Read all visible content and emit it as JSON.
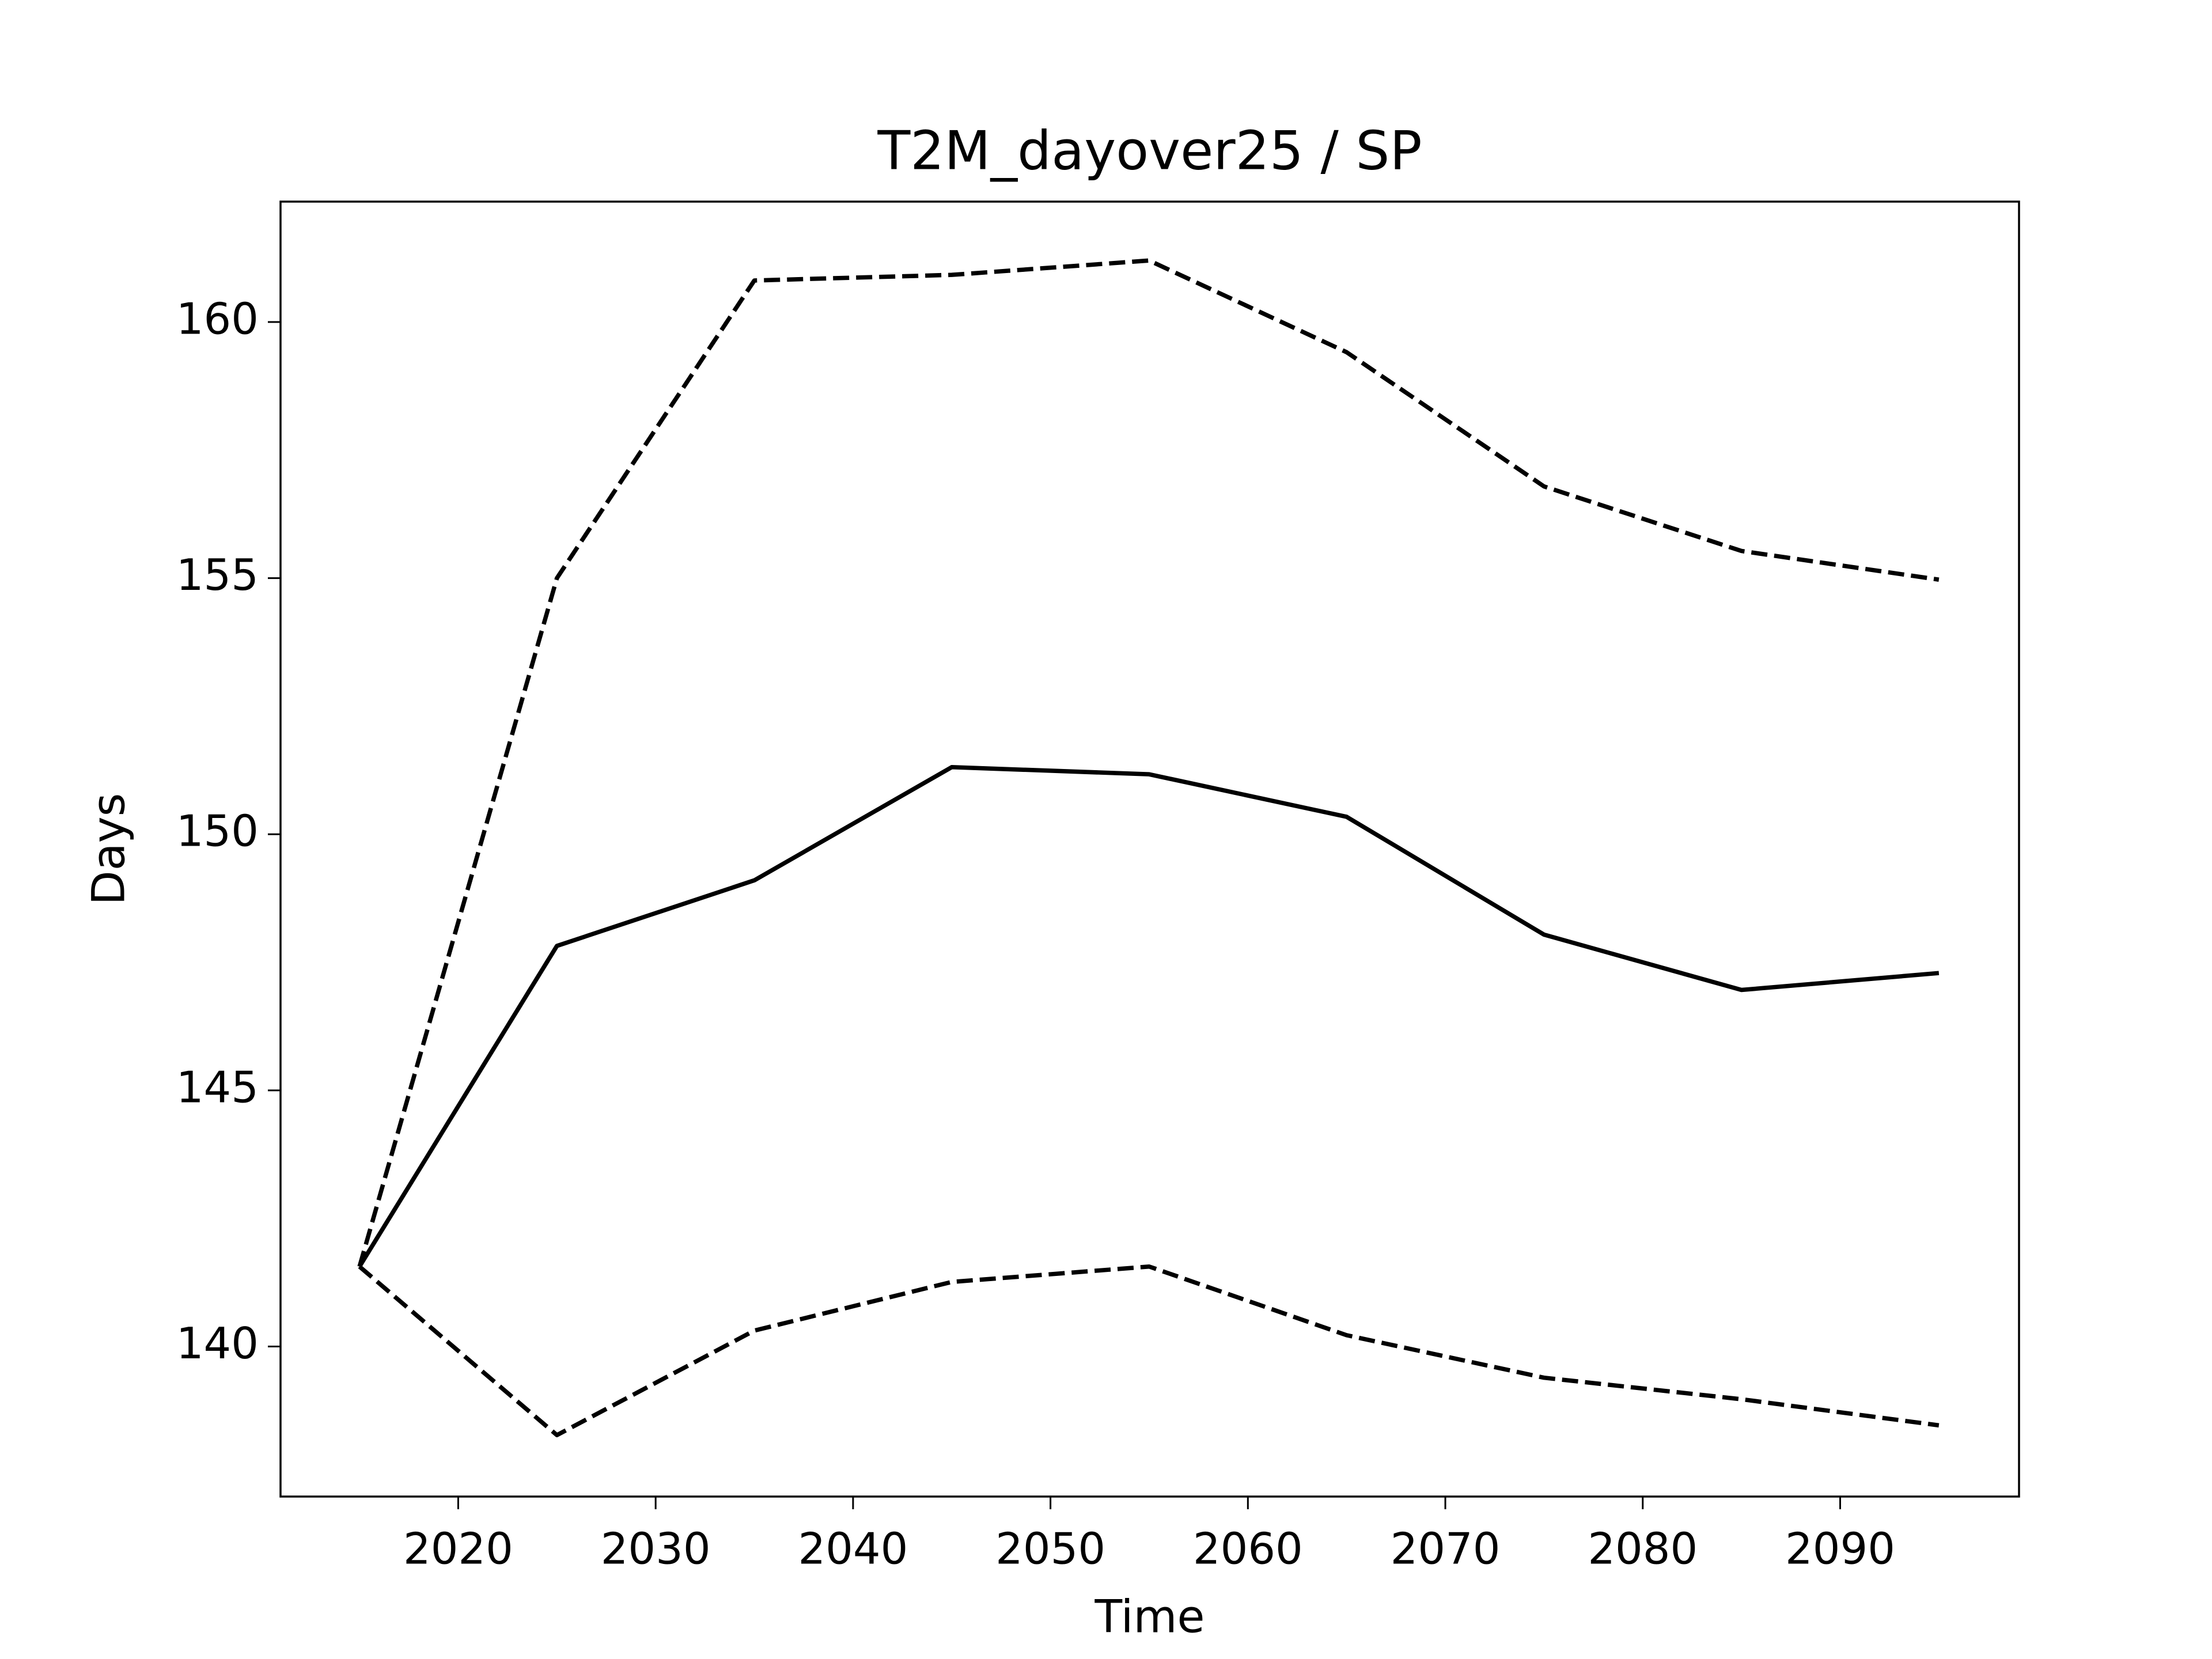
{
  "chart_data": {
    "type": "line",
    "title": "T2M_dayover25 / SP",
    "xlabel": "Time",
    "ylabel": "Days",
    "x": [
      2015,
      2025,
      2035,
      2045,
      2055,
      2065,
      2075,
      2085,
      2095
    ],
    "series": [
      {
        "color": "#000000",
        "linestyle": "solid",
        "values": [
          141.56,
          147.82,
          149.1,
          151.31,
          151.17,
          150.34,
          148.04,
          146.96,
          147.29
        ]
      },
      {
        "color": "#000000",
        "linestyle": "dashed",
        "values": [
          141.56,
          155.0,
          160.81,
          160.92,
          161.2,
          159.41,
          156.79,
          155.53,
          154.97
        ]
      },
      {
        "color": "#000000",
        "linestyle": "dashed",
        "values": [
          141.56,
          138.27,
          140.31,
          141.26,
          141.56,
          140.22,
          139.39,
          138.97,
          138.46
        ]
      }
    ],
    "xlim": [
      2011.0,
      2099.06
    ],
    "xticks": [
      2020,
      2030,
      2040,
      2050,
      2060,
      2070,
      2080,
      2090
    ],
    "ylim": [
      137.07,
      162.35
    ],
    "yticks": [
      140,
      145,
      150,
      155,
      160
    ],
    "grid": false
  }
}
